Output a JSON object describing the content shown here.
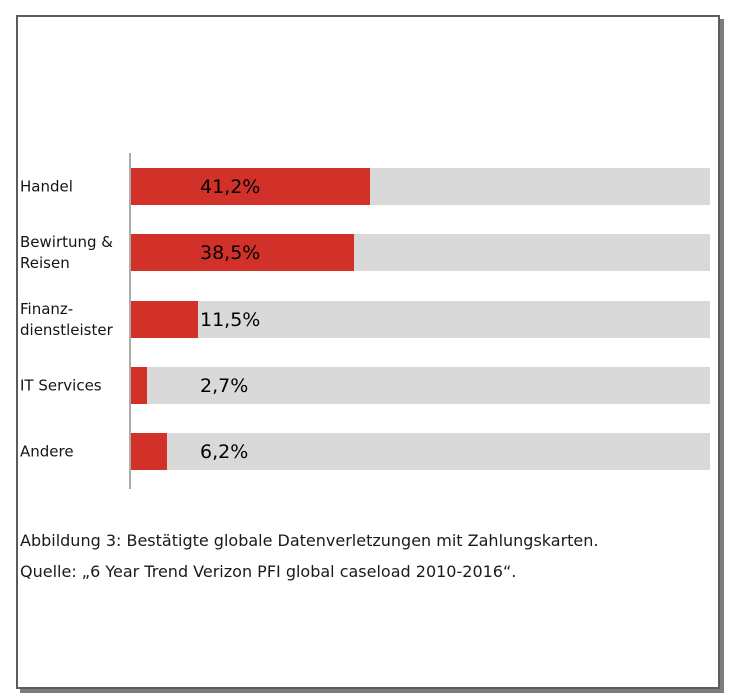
{
  "figure": {
    "caption_line1": "Abbildung 3: Bestätigte globale Datenverletzungen mit Zahlungskarten.",
    "caption_line2": "Quelle: „6 Year Trend Verizon PFI global caseload 2010-2016“."
  },
  "chart_data": {
    "type": "bar",
    "orientation": "horizontal",
    "categories": [
      "Handel",
      "Bewirtung & Reisen",
      "Finanz-dienstleister",
      "IT Services",
      "Andere"
    ],
    "category_label_lines": [
      [
        "Handel"
      ],
      [
        "Bewirtung &",
        "Reisen"
      ],
      [
        "Finanz-",
        "dienstleister"
      ],
      [
        "IT Services"
      ],
      [
        "Andere"
      ]
    ],
    "values": [
      41.2,
      38.5,
      11.5,
      2.7,
      6.2
    ],
    "value_labels": [
      "41,2%",
      "38,5%",
      "11,5%",
      "2,7%",
      "6,2%"
    ],
    "xlim": [
      0,
      100
    ],
    "title": "",
    "xlabel": "",
    "ylabel": "",
    "grid": "off",
    "legend": "none",
    "colors": {
      "bar_fill": "#d2312a",
      "bar_track": "#d9d9d9",
      "axis_line": "#ababab",
      "panel_border": "#5c5c5c",
      "panel_shadow": "#7d7d7d",
      "text": "#141414"
    }
  }
}
